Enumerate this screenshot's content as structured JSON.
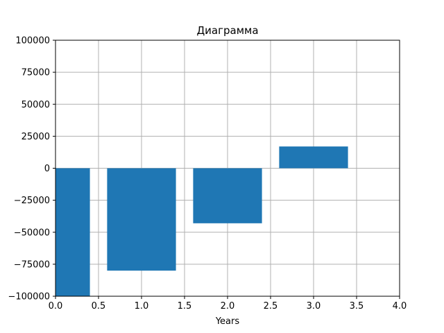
{
  "chart_data": {
    "type": "bar",
    "title": "Диаграмма",
    "xlabel": "Years",
    "ylabel": "",
    "x": [
      0,
      1,
      2,
      3
    ],
    "values": [
      -105000,
      -80000,
      -43000,
      17000
    ],
    "bar_width": 0.8,
    "xlim": [
      0,
      4
    ],
    "ylim": [
      -100000,
      100000
    ],
    "xticks": [
      0.0,
      0.5,
      1.0,
      1.5,
      2.0,
      2.5,
      3.0,
      3.5,
      4.0
    ],
    "xtick_labels": [
      "0.0",
      "0.5",
      "1.0",
      "1.5",
      "2.0",
      "2.5",
      "3.0",
      "3.5",
      "4.0"
    ],
    "yticks": [
      -100000,
      -75000,
      -50000,
      -25000,
      0,
      25000,
      50000,
      75000,
      100000
    ],
    "ytick_labels": [
      "−100000",
      "−75000",
      "−50000",
      "−25000",
      "0",
      "25000",
      "50000",
      "75000",
      "100000"
    ],
    "grid": true,
    "bar_color": "#1f77b4",
    "grid_color": "#b0b0b0"
  }
}
